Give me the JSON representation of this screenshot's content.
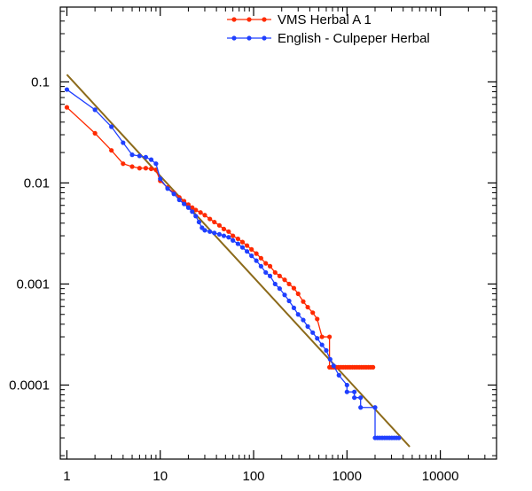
{
  "chart_data": {
    "type": "line",
    "title": "",
    "xlabel": "",
    "ylabel": "",
    "x_scale": "log",
    "y_scale": "log",
    "xlim": [
      0.85,
      40000
    ],
    "ylim": [
      1.85e-05,
      0.55
    ],
    "grid": false,
    "legend_position": "top-right",
    "x_ticks": [
      {
        "value": 1,
        "label": "1"
      },
      {
        "value": 10,
        "label": "10"
      },
      {
        "value": 100,
        "label": "100"
      },
      {
        "value": 1000,
        "label": "1000"
      },
      {
        "value": 10000,
        "label": "10000"
      }
    ],
    "y_ticks": [
      {
        "value": 0.1,
        "label": "0.1"
      },
      {
        "value": 0.01,
        "label": "0.01"
      },
      {
        "value": 0.001,
        "label": "0.001"
      },
      {
        "value": 0.0001,
        "label": "0.0001"
      }
    ],
    "series": [
      {
        "name": "VMS Herbal A 1",
        "color": "#ff2a00",
        "marker": "circle",
        "step_tail": true,
        "points": [
          [
            1,
            0.056
          ],
          [
            2,
            0.031
          ],
          [
            3,
            0.021
          ],
          [
            4,
            0.0155
          ],
          [
            5,
            0.0145
          ],
          [
            6,
            0.014
          ],
          [
            7,
            0.014
          ],
          [
            8,
            0.0138
          ],
          [
            9,
            0.0135
          ],
          [
            10,
            0.0105
          ],
          [
            12,
            0.009
          ],
          [
            14,
            0.008
          ],
          [
            16,
            0.0072
          ],
          [
            18,
            0.0066
          ],
          [
            20,
            0.0061
          ],
          [
            22,
            0.0057
          ],
          [
            24,
            0.0054
          ],
          [
            27,
            0.0051
          ],
          [
            30,
            0.0048
          ],
          [
            34,
            0.0044
          ],
          [
            38,
            0.0041
          ],
          [
            43,
            0.0038
          ],
          [
            48,
            0.0035
          ],
          [
            54,
            0.0033
          ],
          [
            60,
            0.003
          ],
          [
            68,
            0.0028
          ],
          [
            76,
            0.0026
          ],
          [
            85,
            0.0024
          ],
          [
            95,
            0.0022
          ],
          [
            107,
            0.002
          ],
          [
            120,
            0.0018
          ],
          [
            135,
            0.0016
          ],
          [
            150,
            0.0015
          ],
          [
            170,
            0.0013
          ],
          [
            190,
            0.0012
          ],
          [
            215,
            0.0011
          ],
          [
            240,
            0.001
          ],
          [
            270,
            0.00091
          ],
          [
            300,
            0.0008
          ],
          [
            340,
            0.00067
          ],
          [
            380,
            0.00059
          ],
          [
            430,
            0.00052
          ],
          [
            480,
            0.00045
          ],
          [
            540,
            0.0003
          ],
          [
            650,
            0.0003
          ],
          [
            650,
            0.00015
          ],
          [
            1900,
            0.00015
          ]
        ]
      },
      {
        "name": "English - Culpeper Herbal",
        "color": "#1f3fff",
        "marker": "circle",
        "step_tail": true,
        "points": [
          [
            1,
            0.084
          ],
          [
            2,
            0.053
          ],
          [
            3,
            0.036
          ],
          [
            4,
            0.025
          ],
          [
            5,
            0.019
          ],
          [
            6,
            0.0185
          ],
          [
            7,
            0.018
          ],
          [
            8,
            0.017
          ],
          [
            9,
            0.0155
          ],
          [
            10,
            0.011
          ],
          [
            12,
            0.0088
          ],
          [
            14,
            0.0078
          ],
          [
            16,
            0.0068
          ],
          [
            18,
            0.0062
          ],
          [
            20,
            0.0057
          ],
          [
            22,
            0.0052
          ],
          [
            24,
            0.0047
          ],
          [
            26,
            0.0041
          ],
          [
            28,
            0.0036
          ],
          [
            30,
            0.0034
          ],
          [
            34,
            0.0033
          ],
          [
            38,
            0.0032
          ],
          [
            43,
            0.0031
          ],
          [
            48,
            0.003
          ],
          [
            54,
            0.0029
          ],
          [
            60,
            0.0027
          ],
          [
            68,
            0.0025
          ],
          [
            76,
            0.0023
          ],
          [
            85,
            0.0021
          ],
          [
            95,
            0.0019
          ],
          [
            107,
            0.0017
          ],
          [
            120,
            0.0015
          ],
          [
            135,
            0.0013
          ],
          [
            150,
            0.0012
          ],
          [
            170,
            0.001
          ],
          [
            190,
            0.0009
          ],
          [
            215,
            0.00078
          ],
          [
            240,
            0.00068
          ],
          [
            270,
            0.00058
          ],
          [
            300,
            0.0005
          ],
          [
            340,
            0.00044
          ],
          [
            380,
            0.00038
          ],
          [
            430,
            0.00033
          ],
          [
            480,
            0.00029
          ],
          [
            540,
            0.00025
          ],
          [
            600,
            0.00022
          ],
          [
            660,
            0.00018
          ],
          [
            720,
            0.000155
          ],
          [
            820,
            0.000125
          ],
          [
            1000,
            0.0001
          ],
          [
            1000,
            8.55e-05
          ],
          [
            1200,
            8.55e-05
          ],
          [
            1200,
            7.5e-05
          ],
          [
            1400,
            7.5e-05
          ],
          [
            1400,
            6e-05
          ],
          [
            2000,
            6e-05
          ],
          [
            2000,
            3e-05
          ],
          [
            3600,
            3e-05
          ]
        ]
      }
    ],
    "reference_line": {
      "color": "#8c6a1a",
      "points": [
        [
          1,
          0.118
        ],
        [
          4700,
          2.45e-05
        ]
      ]
    }
  }
}
